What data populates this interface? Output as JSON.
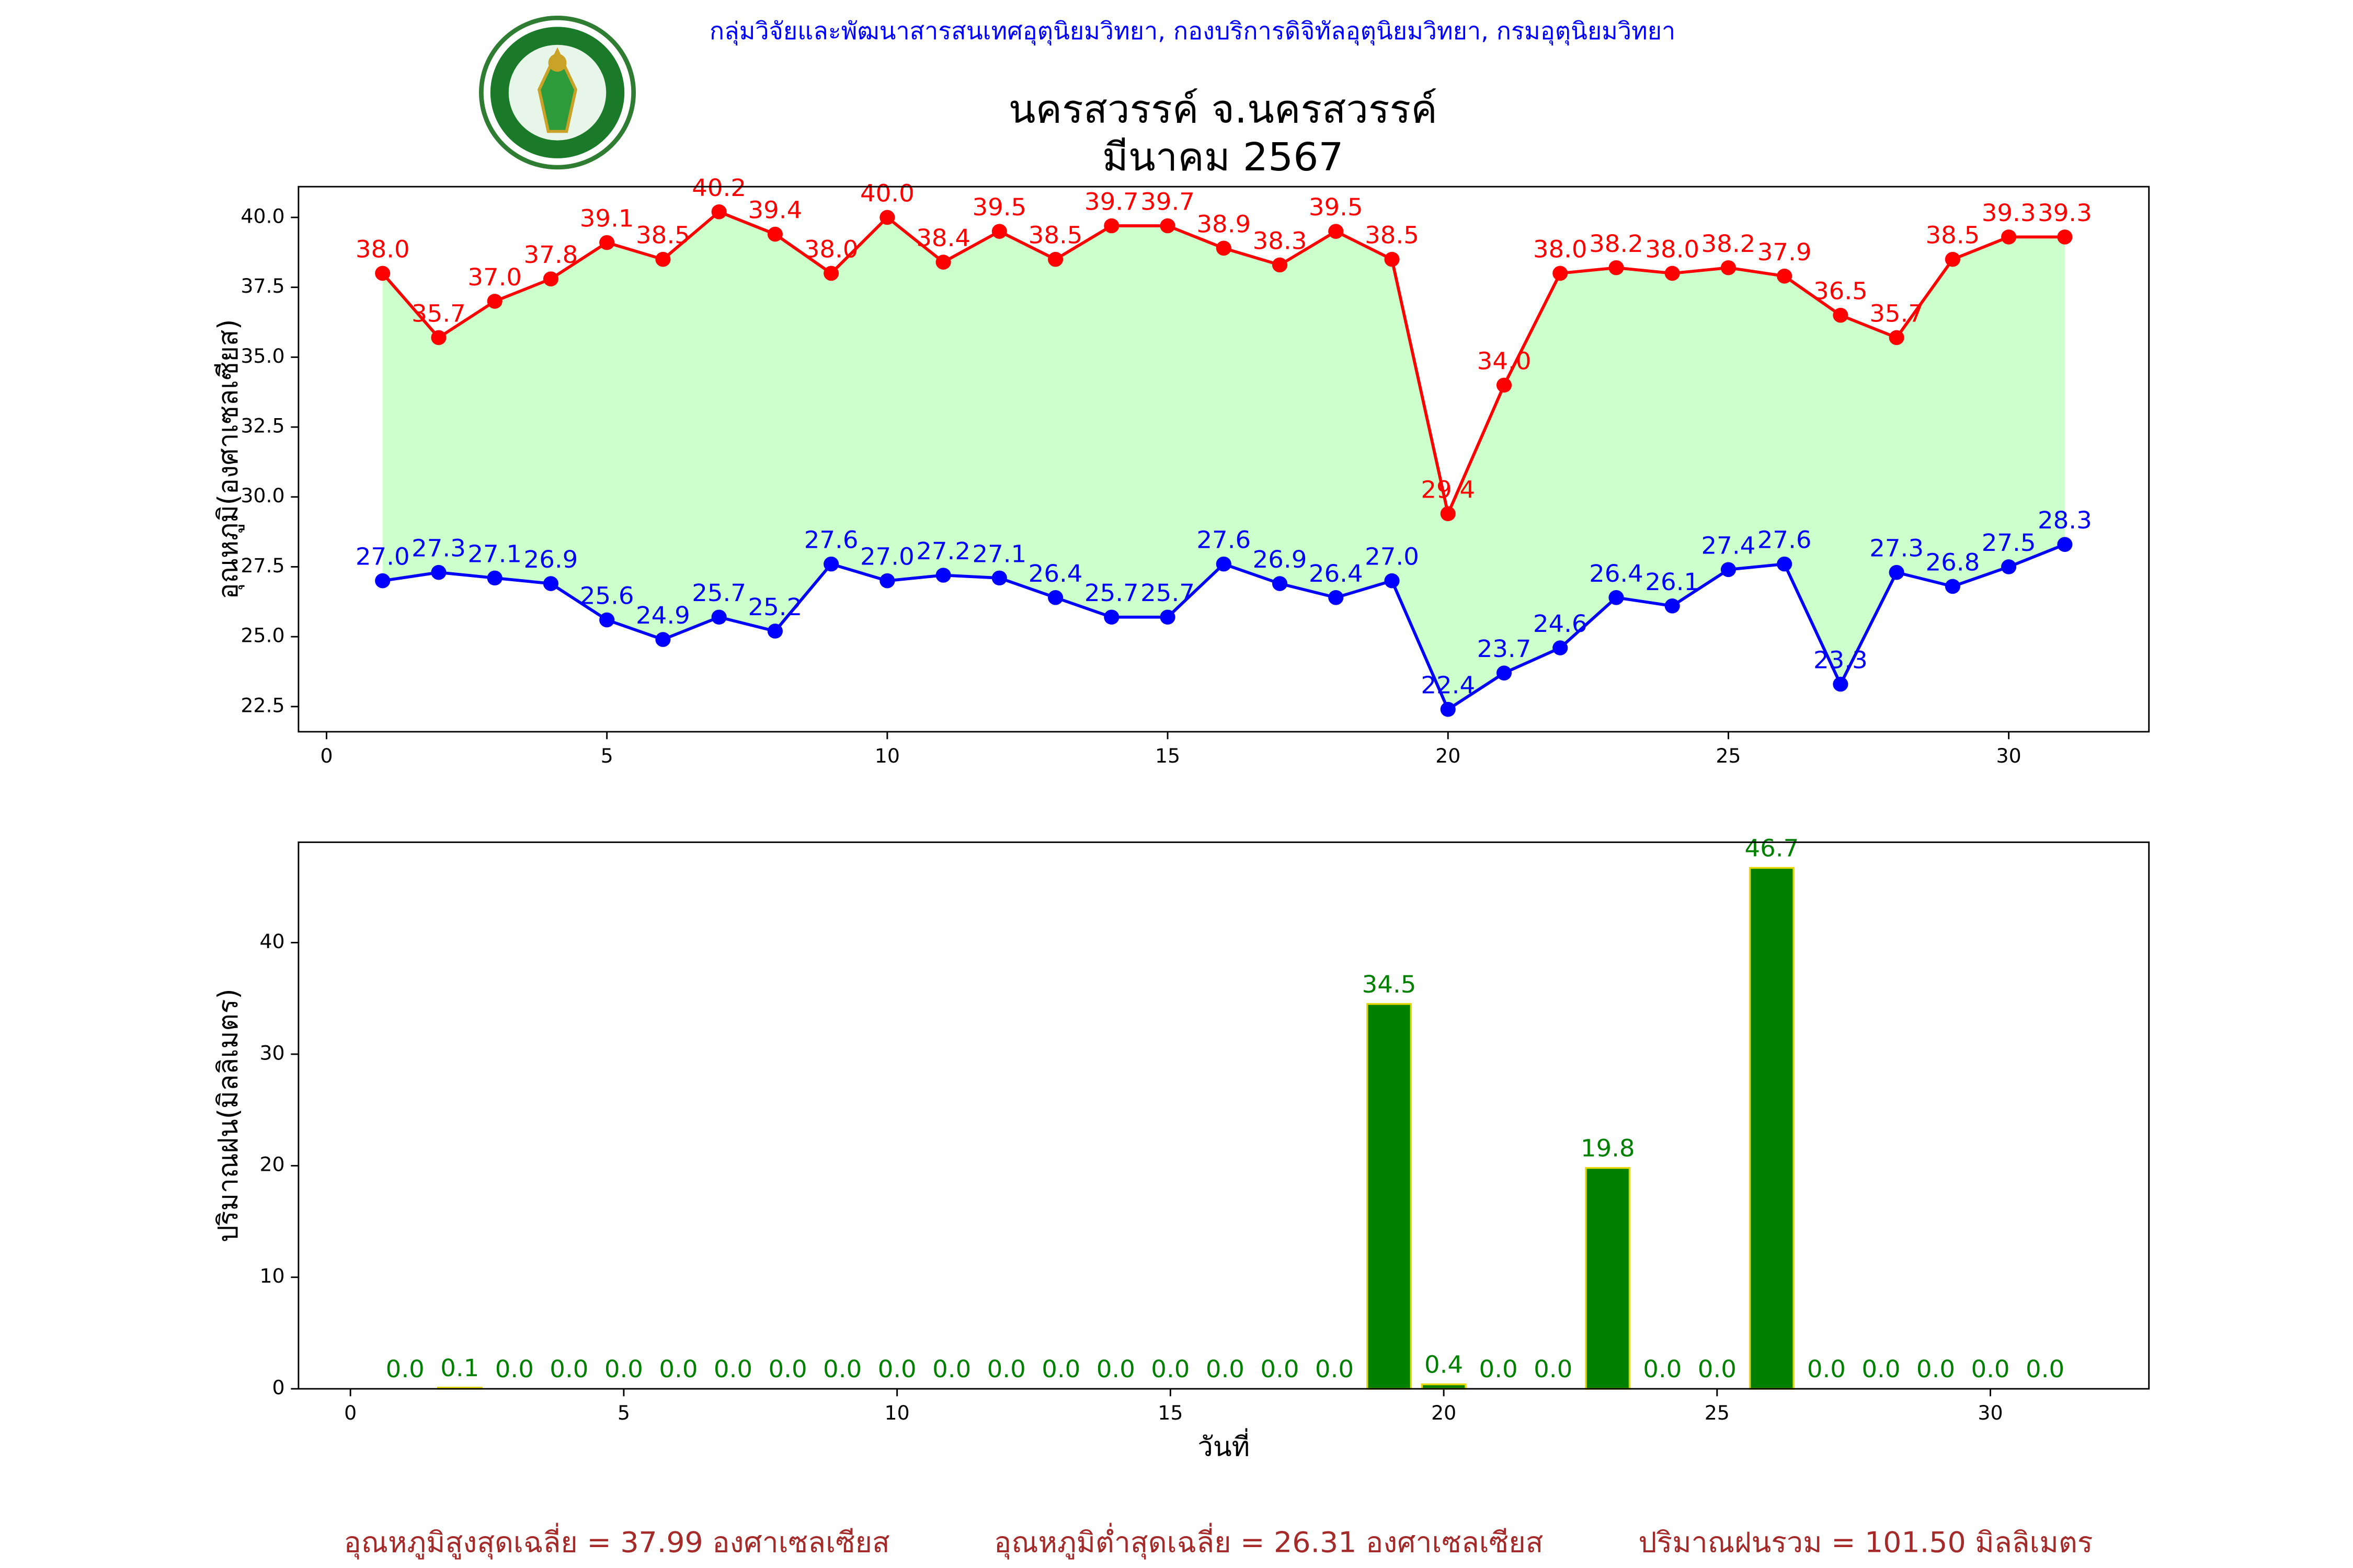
{
  "header": {
    "org": "กลุ่มวิจัยและพัฒนาสารสนเทศอุตุนิยมวิทยา, กองบริการดิจิทัลอุตุนิยมวิทยา, กรมอุตุนิยมวิทยา",
    "title": "นครสวรรค์  จ.นครสวรรค์",
    "subtitle": "มีนาคม 2567"
  },
  "chart_data": [
    {
      "type": "line",
      "y_label": "อุณหภูมิ(องศาเซลเซียส)",
      "x": [
        1,
        2,
        3,
        4,
        5,
        6,
        7,
        8,
        9,
        10,
        11,
        12,
        13,
        14,
        15,
        16,
        17,
        18,
        19,
        20,
        21,
        22,
        23,
        24,
        25,
        26,
        27,
        28,
        29,
        30,
        31
      ],
      "fill_color": "#ccffcc",
      "series": [
        {
          "name": "max",
          "color": "#ff0000",
          "values": [
            38.0,
            35.7,
            37.0,
            37.8,
            39.1,
            38.5,
            40.2,
            39.4,
            38.0,
            40.0,
            38.4,
            39.5,
            38.5,
            39.7,
            39.7,
            38.9,
            38.3,
            39.5,
            38.5,
            29.4,
            34.0,
            38.0,
            38.2,
            38.0,
            38.2,
            37.9,
            36.5,
            35.7,
            38.5,
            39.3,
            39.3
          ],
          "value_labels": [
            "38.0",
            "35.7",
            "37.0",
            "37.8",
            "39.1",
            "38.5",
            "40.2",
            "39.4",
            "38.0",
            "40.0",
            "38.4",
            "39.5",
            "38.5",
            "39.7",
            "39.7",
            "38.9",
            "38.3",
            "39.5",
            "38.5",
            "29.4",
            "34.0",
            "38.0",
            "38.2",
            "38.0",
            "38.2",
            "37.9",
            "36.5",
            "35.7",
            "38.5",
            "39.3",
            "39.3"
          ]
        },
        {
          "name": "min",
          "color": "#0000ff",
          "values": [
            27.0,
            27.3,
            27.1,
            26.9,
            25.6,
            24.9,
            25.7,
            25.2,
            27.6,
            27.0,
            27.2,
            27.1,
            26.4,
            25.7,
            25.7,
            27.6,
            26.9,
            26.4,
            27.0,
            22.4,
            23.7,
            24.6,
            26.4,
            26.1,
            27.4,
            27.6,
            23.3,
            27.3,
            26.8,
            27.5,
            28.3
          ],
          "value_labels": [
            "27.0",
            "27.3",
            "27.1",
            "26.9",
            "25.6",
            "24.9",
            "25.7",
            "25.2",
            "27.6",
            "27.0",
            "27.2",
            "27.1",
            "26.4",
            "25.7",
            "25.7",
            "27.6",
            "26.9",
            "26.4",
            "27.0",
            "22.4",
            "23.7",
            "24.6",
            "26.4",
            "26.1",
            "27.4",
            "27.6",
            "23.3",
            "27.3",
            "26.8",
            "27.5",
            "28.3"
          ]
        }
      ],
      "xlim": [
        -0.5,
        32.5
      ],
      "ylim": [
        21.6,
        41.1
      ],
      "xticks": [
        0,
        5,
        10,
        15,
        20,
        25,
        30
      ],
      "yticks": [
        {
          "value": 22.5,
          "label": "22.5"
        },
        {
          "value": 25,
          "label": "25.0"
        },
        {
          "value": 27.5,
          "label": "27.5"
        },
        {
          "value": 30,
          "label": "30.0"
        },
        {
          "value": 32.5,
          "label": "32.5"
        },
        {
          "value": 35,
          "label": "35.0"
        },
        {
          "value": 37.5,
          "label": "37.5"
        },
        {
          "value": 40,
          "label": "40.0"
        }
      ]
    },
    {
      "type": "bar",
      "y_label": "ปริมาณฝน(มิลลิเมตร)",
      "x_label": "วันที่",
      "x": [
        1,
        2,
        3,
        4,
        5,
        6,
        7,
        8,
        9,
        10,
        11,
        12,
        13,
        14,
        15,
        16,
        17,
        18,
        19,
        20,
        21,
        22,
        23,
        24,
        25,
        26,
        27,
        28,
        29,
        30,
        31
      ],
      "color": "#008000",
      "edge_color": "#e6d800",
      "label_color": "#008000",
      "values": [
        0,
        0.1,
        0,
        0,
        0,
        0,
        0,
        0,
        0,
        0,
        0,
        0,
        0,
        0,
        0,
        0,
        0,
        0,
        34.5,
        0.4,
        0,
        0,
        19.8,
        0,
        0,
        46.7,
        0,
        0,
        0,
        0,
        0
      ],
      "value_labels": [
        "0.0",
        "0.1",
        "0.0",
        "0.0",
        "0.0",
        "0.0",
        "0.0",
        "0.0",
        "0.0",
        "0.0",
        "0.0",
        "0.0",
        "0.0",
        "0.0",
        "0.0",
        "0.0",
        "0.0",
        "0.0",
        "34.5",
        "0.4",
        "0.0",
        "0.0",
        "19.8",
        "0.0",
        "0.0",
        "46.7",
        "0.0",
        "0.0",
        "0.0",
        "0.0",
        "0.0"
      ],
      "xlim": [
        -0.95,
        32.9
      ],
      "ylim": [
        0,
        49
      ],
      "xticks": [
        0,
        5,
        10,
        15,
        20,
        25,
        30
      ],
      "yticks": [
        0,
        10,
        20,
        30,
        40
      ]
    }
  ],
  "footer": [
    "อุณหภูมิสูงสุดเฉลี่ย = 37.99 องศาเซลเซียส",
    "อุณหภูมิต่ำสุดเฉลี่ย = 26.31 องศาเซลเซียส",
    "ปริมาณฝนรวม = 101.50 มิลลิเมตร"
  ]
}
